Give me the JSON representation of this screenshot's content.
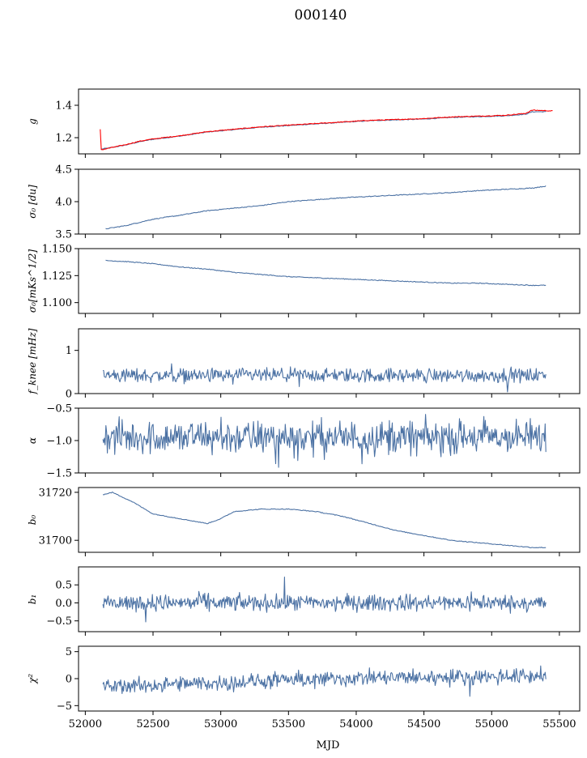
{
  "figure": {
    "title": "000140",
    "xlabel": "MJD",
    "xlim": [
      51950,
      55650
    ],
    "xticks": [
      52000,
      52500,
      53000,
      53500,
      54000,
      54500,
      55000,
      55500
    ],
    "colors": {
      "series": "#4c72a4",
      "fit": "#ff0000"
    }
  },
  "chart_data": [
    {
      "type": "line",
      "id": "g",
      "ylabel": "g",
      "ylim": [
        1.1,
        1.5
      ],
      "yticks": [
        "1.2",
        "1.4"
      ],
      "ytick_values": [
        1.2,
        1.4
      ],
      "series": [
        {
          "color": "#4c72a4",
          "x": [
            52120,
            52200,
            52300,
            52400,
            52500,
            52700,
            52900,
            53100,
            53300,
            53500,
            53700,
            53900,
            54100,
            54300,
            54500,
            54700,
            54900,
            55100,
            55250,
            55300,
            55400
          ],
          "y": [
            1.13,
            1.14,
            1.155,
            1.175,
            1.19,
            1.21,
            1.235,
            1.25,
            1.265,
            1.275,
            1.285,
            1.295,
            1.305,
            1.31,
            1.315,
            1.325,
            1.33,
            1.335,
            1.345,
            1.36,
            1.36
          ]
        },
        {
          "color": "#ff0000",
          "x": [
            52110,
            52115,
            52120,
            52200,
            52300,
            52400,
            52500,
            52700,
            52900,
            53100,
            53300,
            53500,
            53700,
            53900,
            54100,
            54300,
            54500,
            54700,
            54900,
            55100,
            55250,
            55300,
            55450
          ],
          "y": [
            1.25,
            1.13,
            1.125,
            1.14,
            1.157,
            1.178,
            1.192,
            1.212,
            1.237,
            1.252,
            1.267,
            1.277,
            1.287,
            1.297,
            1.307,
            1.312,
            1.318,
            1.328,
            1.333,
            1.338,
            1.35,
            1.37,
            1.365
          ]
        }
      ]
    },
    {
      "type": "line",
      "id": "sigma0-du",
      "ylabel": "σ₀ [du]",
      "ylim": [
        3.5,
        4.5
      ],
      "yticks": [
        "3.5",
        "4.0",
        "4.5"
      ],
      "ytick_values": [
        3.5,
        4.0,
        4.5
      ],
      "series": [
        {
          "color": "#4c72a4",
          "x": [
            52150,
            52300,
            52500,
            52700,
            52900,
            53100,
            53300,
            53500,
            53700,
            53900,
            54100,
            54300,
            54500,
            54700,
            54900,
            55100,
            55300,
            55400
          ],
          "y": [
            3.58,
            3.63,
            3.73,
            3.79,
            3.86,
            3.9,
            3.94,
            4.0,
            4.03,
            4.06,
            4.08,
            4.1,
            4.12,
            4.14,
            4.17,
            4.19,
            4.21,
            4.24
          ]
        }
      ]
    },
    {
      "type": "line",
      "id": "sigma0-mks",
      "ylabel": "σ₀[mKs^1/2]",
      "ylim": [
        1.09,
        1.15
      ],
      "yticks": [
        "1.100",
        "1.125",
        "1.150"
      ],
      "ytick_values": [
        1.1,
        1.125,
        1.15
      ],
      "series": [
        {
          "color": "#4c72a4",
          "x": [
            52150,
            52300,
            52500,
            52700,
            52900,
            53100,
            53300,
            53500,
            53700,
            53900,
            54100,
            54300,
            54500,
            54700,
            54900,
            55100,
            55300,
            55400
          ],
          "y": [
            1.139,
            1.138,
            1.136,
            1.133,
            1.131,
            1.128,
            1.126,
            1.124,
            1.123,
            1.122,
            1.121,
            1.12,
            1.119,
            1.118,
            1.118,
            1.117,
            1.116,
            1.116
          ]
        }
      ]
    },
    {
      "type": "line",
      "id": "fknee",
      "ylabel": "f_knee [mHz]",
      "ylim": [
        0,
        1.5
      ],
      "yticks": [
        "0",
        "1"
      ],
      "ytick_values": [
        0,
        1
      ],
      "series": [
        {
          "color": "#4c72a4",
          "x": [
            52130,
            55400
          ],
          "y": [
            0.42,
            0.42
          ],
          "noise": {
            "amplitude": 0.1,
            "points": 600
          }
        }
      ]
    },
    {
      "type": "line",
      "id": "alpha",
      "ylabel": "α",
      "ylim": [
        -1.5,
        -0.5
      ],
      "yticks": [
        "−1.5",
        "−1.0",
        "−0.5"
      ],
      "ytick_values": [
        -1.5,
        -1.0,
        -0.5
      ],
      "series": [
        {
          "color": "#4c72a4",
          "x": [
            52130,
            55400
          ],
          "y": [
            -0.95,
            -0.95
          ],
          "noise": {
            "amplitude": 0.16,
            "points": 600
          }
        }
      ]
    },
    {
      "type": "line",
      "id": "b0",
      "ylabel": "b₀",
      "ylim": [
        31695,
        31722
      ],
      "yticks": [
        "31700",
        "31720"
      ],
      "ytick_values": [
        31700,
        31720
      ],
      "series": [
        {
          "color": "#4c72a4",
          "x": [
            52130,
            52200,
            52350,
            52500,
            52700,
            52900,
            53000,
            53100,
            53300,
            53500,
            53700,
            53900,
            54100,
            54300,
            54500,
            54700,
            54900,
            55100,
            55300,
            55400
          ],
          "y": [
            31719,
            31720,
            31716,
            31711,
            31709,
            31707,
            31709,
            31712,
            31713,
            31713,
            31712,
            31710,
            31707,
            31704,
            31702,
            31700,
            31699,
            31698,
            31697,
            31697
          ]
        }
      ]
    },
    {
      "type": "line",
      "id": "b1",
      "ylabel": "b₁",
      "ylim": [
        -0.8,
        1.0
      ],
      "yticks": [
        "−0.5",
        "0.0",
        "0.5"
      ],
      "ytick_values": [
        -0.5,
        0.0,
        0.5
      ],
      "series": [
        {
          "color": "#4c72a4",
          "x": [
            52130,
            55400
          ],
          "y": [
            0.0,
            0.0
          ],
          "noise": {
            "amplitude": 0.14,
            "points": 600
          }
        }
      ]
    },
    {
      "type": "line",
      "id": "chi2",
      "ylabel": "χ²",
      "ylim": [
        -6,
        6
      ],
      "yticks": [
        "−5",
        "0",
        "5"
      ],
      "ytick_values": [
        -5,
        0,
        5
      ],
      "series": [
        {
          "color": "#4c72a4",
          "x": [
            52130,
            52500,
            53000,
            53500,
            54000,
            54500,
            55000,
            55400
          ],
          "y": [
            -1.5,
            -1.2,
            -0.8,
            -0.3,
            0.1,
            0.2,
            0.4,
            0.5
          ],
          "noise": {
            "amplitude": 0.9,
            "points": 600
          }
        }
      ]
    }
  ]
}
